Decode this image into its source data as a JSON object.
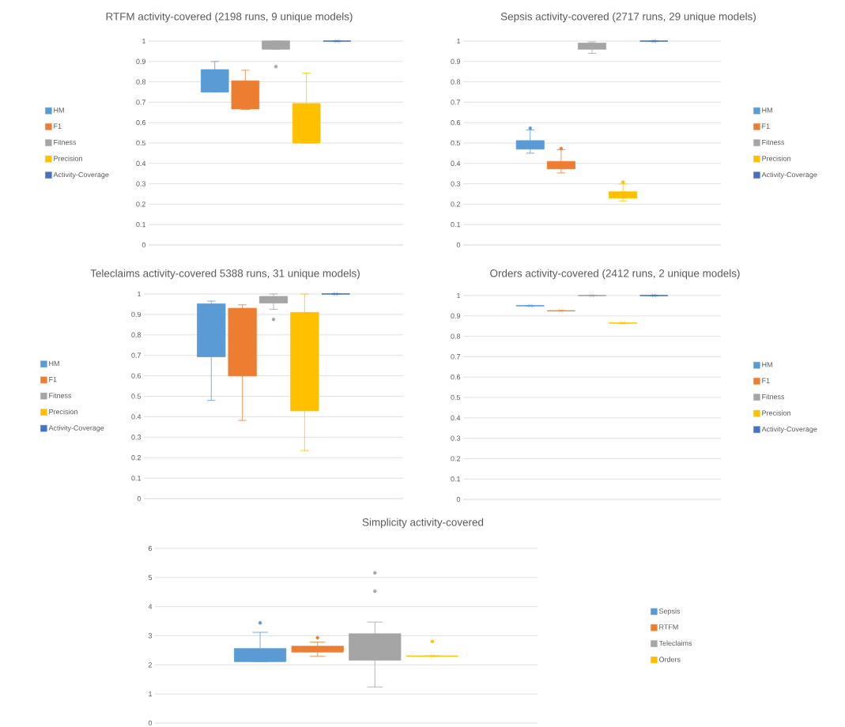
{
  "chart_data": [
    {
      "type": "box",
      "title": "RTFM activity-covered (2198 runs, 9 unique models)",
      "categories": [
        null
      ],
      "ylim": [
        0,
        1
      ],
      "yticks": [
        0,
        0.1,
        0.2,
        0.3,
        0.4,
        0.5,
        0.6,
        0.7,
        0.8,
        0.9,
        1
      ],
      "grid": "y",
      "legend": "left",
      "series": [
        {
          "name": "HM",
          "color": "#5b9bd5",
          "boxes": [
            {
              "low": 0.75,
              "q1": 0.75,
              "median": 0.78,
              "q3": 0.86,
              "high": 0.9,
              "mean": 0.8
            }
          ]
        },
        {
          "name": "F1",
          "color": "#ed7d31",
          "boxes": [
            {
              "low": 0.665,
              "q1": 0.667,
              "median": 0.705,
              "q3": 0.805,
              "high": 0.857,
              "mean": 0.73
            }
          ]
        },
        {
          "name": "Fitness",
          "color": "#a5a5a5",
          "boxes": [
            {
              "low": 0.96,
              "q1": 0.96,
              "median": 1,
              "q3": 1,
              "high": 1,
              "mean": 0.98,
              "outliers": [
                0.875
              ]
            }
          ]
        },
        {
          "name": "Precision",
          "color": "#ffc000",
          "boxes": [
            {
              "low": 0.5,
              "q1": 0.5,
              "median": 0.545,
              "q3": 0.694,
              "high": 0.843,
              "mean": 0.59
            }
          ]
        },
        {
          "name": "Activity-Coverage",
          "color": "#4472c4",
          "boxes": [
            {
              "low": 1,
              "q1": 1,
              "median": 1,
              "q3": 1,
              "high": 1,
              "mean": 1
            }
          ]
        }
      ]
    },
    {
      "type": "box",
      "title": "Sepsis activity-covered (2717 runs, 29 unique models)",
      "categories": [
        null
      ],
      "ylim": [
        0,
        1
      ],
      "yticks": [
        0,
        0.1,
        0.2,
        0.3,
        0.4,
        0.5,
        0.6,
        0.7,
        0.8,
        0.9,
        1
      ],
      "grid": "y",
      "legend": "right",
      "series": [
        {
          "name": "HM",
          "color": "#5b9bd5",
          "boxes": [
            {
              "low": 0.45,
              "q1": 0.47,
              "median": 0.489,
              "q3": 0.512,
              "high": 0.564,
              "mean": 0.5,
              "outliers": [
                0.573
              ]
            }
          ]
        },
        {
          "name": "F1",
          "color": "#ed7d31",
          "boxes": [
            {
              "low": 0.353,
              "q1": 0.373,
              "median": 0.389,
              "q3": 0.41,
              "high": 0.467,
              "mean": 0.4,
              "outliers": [
                0.473
              ]
            }
          ]
        },
        {
          "name": "Fitness",
          "color": "#a5a5a5",
          "boxes": [
            {
              "low": 0.94,
              "q1": 0.96,
              "median": 0.975,
              "q3": 0.99,
              "high": 0.996,
              "mean": 0.98
            }
          ]
        },
        {
          "name": "Precision",
          "color": "#ffc000",
          "boxes": [
            {
              "low": 0.216,
              "q1": 0.23,
              "median": 0.246,
              "q3": 0.261,
              "high": 0.299,
              "mean": 0.253,
              "outliers": [
                0.308
              ]
            }
          ]
        },
        {
          "name": "Activity-Coverage",
          "color": "#4472c4",
          "boxes": [
            {
              "low": 1,
              "q1": 1,
              "median": 1,
              "q3": 1,
              "high": 1,
              "mean": 1
            }
          ]
        }
      ]
    },
    {
      "type": "box",
      "title": "Teleclaims activity-covered 5388 runs, 31 unique models)",
      "categories": [
        null
      ],
      "ylim": [
        0,
        1
      ],
      "yticks": [
        0,
        0.1,
        0.2,
        0.3,
        0.4,
        0.5,
        0.6,
        0.7,
        0.8,
        0.9,
        1
      ],
      "grid": "y",
      "legend": "left",
      "series": [
        {
          "name": "HM",
          "color": "#5b9bd5",
          "boxes": [
            {
              "low": 0.48,
              "q1": 0.693,
              "median": 0.756,
              "q3": 0.952,
              "high": 0.965,
              "mean": 0.789
            }
          ]
        },
        {
          "name": "F1",
          "color": "#ed7d31",
          "boxes": [
            {
              "low": 0.382,
              "q1": 0.599,
              "median": 0.672,
              "q3": 0.93,
              "high": 0.947,
              "mean": 0.725
            }
          ]
        },
        {
          "name": "Fitness",
          "color": "#a5a5a5",
          "boxes": [
            {
              "low": 0.925,
              "q1": 0.956,
              "median": 0.97,
              "q3": 0.988,
              "high": 1,
              "mean": 0.97,
              "outliers": [
                0.875
              ]
            }
          ]
        },
        {
          "name": "Precision",
          "color": "#ffc000",
          "boxes": [
            {
              "low": 0.235,
              "q1": 0.429,
              "median": 0.51,
              "q3": 0.91,
              "high": 1,
              "mean": 0.629
            }
          ]
        },
        {
          "name": "Activity-Coverage",
          "color": "#4472c4",
          "boxes": [
            {
              "low": 1,
              "q1": 1,
              "median": 1,
              "q3": 1,
              "high": 1,
              "mean": 1
            }
          ]
        }
      ]
    },
    {
      "type": "box",
      "title": "Orders activity-covered (2412 runs, 2 unique models)",
      "categories": [
        null
      ],
      "ylim": [
        0,
        1
      ],
      "yticks": [
        0,
        0.1,
        0.2,
        0.3,
        0.4,
        0.5,
        0.6,
        0.7,
        0.8,
        0.9,
        1
      ],
      "grid": "y",
      "legend": "right",
      "series": [
        {
          "name": "HM",
          "color": "#5b9bd5",
          "boxes": [
            {
              "low": 0.95,
              "q1": 0.95,
              "median": 0.95,
              "q3": 0.95,
              "high": 0.95,
              "mean": 0.95
            }
          ]
        },
        {
          "name": "F1",
          "color": "#ed7d31",
          "boxes": [
            {
              "low": 0.925,
              "q1": 0.925,
              "median": 0.925,
              "q3": 0.925,
              "high": 0.925,
              "mean": 0.925
            }
          ]
        },
        {
          "name": "Fitness",
          "color": "#a5a5a5",
          "boxes": [
            {
              "low": 1,
              "q1": 1,
              "median": 1,
              "q3": 1,
              "high": 1,
              "mean": 1
            }
          ]
        },
        {
          "name": "Precision",
          "color": "#ffc000",
          "boxes": [
            {
              "low": 0.865,
              "q1": 0.865,
              "median": 0.865,
              "q3": 0.865,
              "high": 0.865,
              "mean": 0.865
            }
          ]
        },
        {
          "name": "Activity-Coverage",
          "color": "#4472c4",
          "boxes": [
            {
              "low": 1,
              "q1": 1,
              "median": 1,
              "q3": 1,
              "high": 1,
              "mean": 1
            }
          ]
        }
      ]
    },
    {
      "type": "box",
      "title": "Simplicity activity-covered",
      "categories": [
        null
      ],
      "ylim": [
        0,
        6
      ],
      "yticks": [
        0,
        1,
        2,
        3,
        4,
        5,
        6
      ],
      "grid": "y",
      "legend": "right",
      "series": [
        {
          "name": "Sepsis",
          "color": "#5b9bd5",
          "boxes": [
            {
              "low": 2.11,
              "q1": 2.11,
              "median": 2.21,
              "q3": 2.56,
              "high": 3.12,
              "mean": 2.47,
              "outliers": [
                3.44
              ]
            }
          ]
        },
        {
          "name": "RTFM",
          "color": "#ed7d31",
          "boxes": [
            {
              "low": 2.3,
              "q1": 2.44,
              "median": 2.55,
              "q3": 2.64,
              "high": 2.78,
              "mean": 2.58,
              "outliers": [
                2.93
              ]
            }
          ]
        },
        {
          "name": "Teleclaims",
          "color": "#a5a5a5",
          "boxes": [
            {
              "low": 1.24,
              "q1": 2.16,
              "median": 2.45,
              "q3": 3.07,
              "high": 3.47,
              "mean": 2.69,
              "outliers": [
                4.53,
                5.16
              ]
            }
          ]
        },
        {
          "name": "Orders",
          "color": "#ffc000",
          "boxes": [
            {
              "low": 2.3,
              "q1": 2.3,
              "median": 2.3,
              "q3": 2.3,
              "high": 2.3,
              "mean": 2.3,
              "outliers": [
                2.8
              ]
            }
          ]
        }
      ]
    }
  ]
}
